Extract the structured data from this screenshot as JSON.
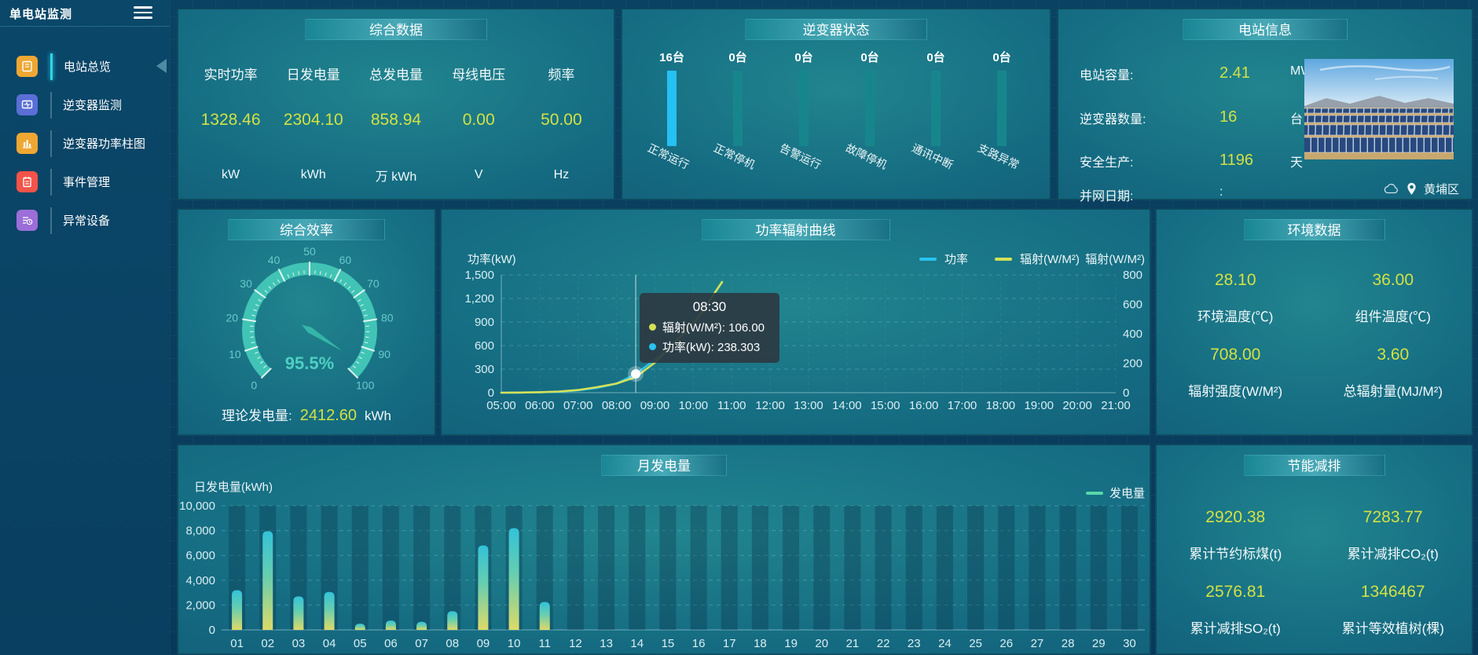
{
  "app": {
    "title": "单电站监测"
  },
  "sidebar": {
    "items": [
      {
        "label": "电站总览",
        "icon_color": "#efa733",
        "active": true
      },
      {
        "label": "逆变器监测",
        "icon_color": "#5a6fd6",
        "active": false
      },
      {
        "label": "逆变器功率柱图",
        "icon_color": "#efa733",
        "active": false
      },
      {
        "label": "事件管理",
        "icon_color": "#f35348",
        "active": false
      },
      {
        "label": "异常设备",
        "icon_color": "#9b6ed8",
        "active": false
      }
    ]
  },
  "overview": {
    "title": "综合数据",
    "items": [
      {
        "label": "实时功率",
        "value": "1328.46",
        "unit": "kW"
      },
      {
        "label": "日发电量",
        "value": "2304.10",
        "unit": "kWh"
      },
      {
        "label": "总发电量",
        "value": "858.94",
        "unit": "万  kWh"
      },
      {
        "label": "母线电压",
        "value": "0.00",
        "unit": "V"
      },
      {
        "label": "频率",
        "value": "50.00",
        "unit": "Hz"
      }
    ]
  },
  "inverter_status": {
    "title": "逆变器状态",
    "items": [
      {
        "count": "16台",
        "label": "正常运行",
        "color": "#25c1f2"
      },
      {
        "count": "0台",
        "label": "正常停机",
        "color": "#17868c"
      },
      {
        "count": "0台",
        "label": "告警运行",
        "color": "#17868c"
      },
      {
        "count": "0台",
        "label": "故障停机",
        "color": "#17868c"
      },
      {
        "count": "0台",
        "label": "通讯中断",
        "color": "#17868c"
      },
      {
        "count": "0台",
        "label": "支路异常",
        "color": "#17868c"
      }
    ]
  },
  "station_info": {
    "title": "电站信息",
    "rows": [
      {
        "label": "电站容量:",
        "value": "2.41",
        "unit": "MW"
      },
      {
        "label": "逆变器数量:",
        "value": "16",
        "unit": "台"
      },
      {
        "label": "安全生产:",
        "value": "1196",
        "unit": "天"
      },
      {
        "label": "并网日期:",
        "value": ":",
        "unit": ""
      }
    ],
    "location": "黄埔区"
  },
  "efficiency": {
    "theory_label": "理论发电量:",
    "theory_value": "2412.60",
    "theory_unit": "kWh"
  },
  "environment": {
    "title": "环境数据",
    "items": [
      {
        "value": "28.10",
        "label": "环境温度(℃)"
      },
      {
        "value": "36.00",
        "label": "组件温度(℃)"
      },
      {
        "value": "708.00",
        "label": "辐射强度(W/M²)"
      },
      {
        "value": "3.60",
        "label": "总辐射量(MJ/M²)"
      }
    ]
  },
  "energy_saving": {
    "title": "节能减排",
    "items": [
      {
        "value": "2920.38",
        "label": "累计节约标煤(t)"
      },
      {
        "value": "7283.77",
        "label": "累计减排CO₂(t)"
      },
      {
        "value": "2576.81",
        "label": "累计减排SO₂(t)"
      },
      {
        "value": "1346467",
        "label": "累计等效植树(棵)"
      }
    ]
  },
  "chart_data": [
    {
      "type": "gauge",
      "title": "综合效率",
      "value": 95.5,
      "display": "95.5%",
      "min": 0,
      "max": 100,
      "tick_step": 10,
      "arc_color": "#41c4b5",
      "label_color": "#66cbca"
    },
    {
      "type": "line",
      "title": "功率辐射曲线",
      "xticks": [
        "05:00",
        "06:00",
        "07:00",
        "08:00",
        "09:00",
        "10:00",
        "11:00",
        "12:00",
        "13:00",
        "14:00",
        "15:00",
        "16:00",
        "17:00",
        "18:00",
        "19:00",
        "20:00",
        "21:00"
      ],
      "left_axis": {
        "label": "功率(kW)",
        "range": [
          0,
          1500
        ],
        "ticks": [
          0,
          300,
          600,
          900,
          1200,
          1500
        ],
        "tick_labels": [
          "0",
          "300",
          "600",
          "900",
          "1,200",
          "1,500"
        ]
      },
      "right_axis": {
        "label": "辐射(W/M²)",
        "range": [
          0,
          800
        ],
        "ticks": [
          0,
          200,
          400,
          600,
          800
        ],
        "tick_labels": [
          "0",
          "200",
          "400",
          "600",
          "800"
        ]
      },
      "series": [
        {
          "name": "功率",
          "axis": "left",
          "color": "#29c3f0",
          "points": [
            [
              5,
              0
            ],
            [
              5.5,
              2
            ],
            [
              6,
              5
            ],
            [
              6.5,
              12
            ],
            [
              7,
              30
            ],
            [
              7.5,
              62
            ],
            [
              8,
              115
            ],
            [
              8.5,
              238.303
            ],
            [
              9,
              420
            ],
            [
              9.5,
              630
            ],
            [
              10,
              880
            ],
            [
              10.25,
              1030
            ],
            [
              10.5,
              1230
            ],
            [
              10.75,
              1410
            ]
          ]
        },
        {
          "name": "辐射(W/M²)",
          "axis": "right",
          "color": "#d4e157",
          "points": [
            [
              5,
              0
            ],
            [
              5.5,
              1
            ],
            [
              6,
              3
            ],
            [
              6.5,
              8
            ],
            [
              7,
              18
            ],
            [
              7.5,
              38
            ],
            [
              8,
              62
            ],
            [
              8.5,
              106
            ],
            [
              9,
              205
            ],
            [
              9.5,
              335
            ],
            [
              10,
              470
            ],
            [
              10.25,
              555
            ],
            [
              10.5,
              655
            ],
            [
              10.75,
              752
            ]
          ]
        }
      ],
      "hover": {
        "hour": 8.5,
        "power": 238.303
      },
      "tooltip": {
        "time": "08:30",
        "rows": [
          {
            "color": "#d4e157",
            "text": "辐射(W/M²): 106.00"
          },
          {
            "color": "#29c3f0",
            "text": "功率(kW): 238.303"
          }
        ]
      }
    },
    {
      "type": "bar",
      "title": "月发电量",
      "ylabel": "日发电量(kWh)",
      "ylim": [
        0,
        10000
      ],
      "yticks": [
        0,
        2000,
        4000,
        6000,
        8000,
        10000
      ],
      "ytick_labels": [
        "0",
        "2,000",
        "4,000",
        "6,000",
        "8,000",
        "10,000"
      ],
      "categories": [
        "01",
        "02",
        "03",
        "04",
        "05",
        "06",
        "07",
        "08",
        "09",
        "10",
        "11",
        "12",
        "13",
        "14",
        "15",
        "16",
        "17",
        "18",
        "19",
        "20",
        "21",
        "22",
        "23",
        "24",
        "25",
        "26",
        "27",
        "28",
        "29",
        "30"
      ],
      "values": [
        3200,
        7950,
        2700,
        3050,
        500,
        750,
        650,
        1500,
        6800,
        8200,
        2250,
        0,
        0,
        0,
        0,
        0,
        0,
        0,
        0,
        0,
        0,
        0,
        0,
        0,
        0,
        0,
        0,
        0,
        0,
        0
      ],
      "legend": "发电量",
      "legend_color": "#57d6ab",
      "bar_gradient": [
        "#ddda68",
        "#66ceb0",
        "#33c2d8"
      ]
    }
  ]
}
